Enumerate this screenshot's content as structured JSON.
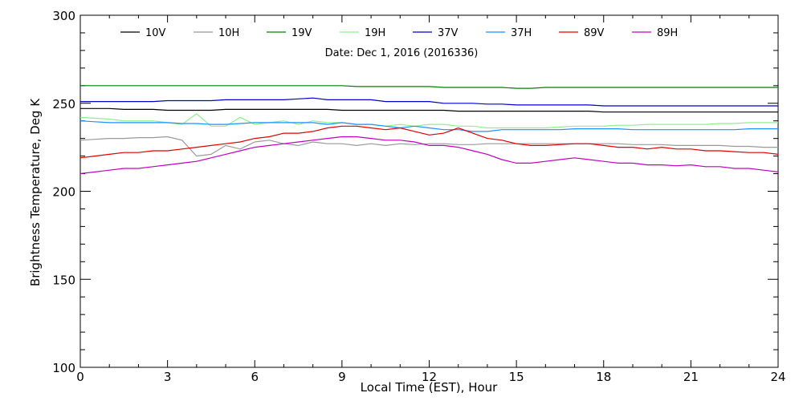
{
  "chart_data": {
    "type": "line",
    "title": "",
    "annotation": "Date: Dec  1, 2016 (2016336)",
    "xlabel": "Local Time (EST), Hour",
    "ylabel": "Brightness Temperature, Deg K",
    "xlim": [
      0,
      24
    ],
    "ylim": [
      100,
      300
    ],
    "x_ticks": [
      0,
      3,
      6,
      9,
      12,
      15,
      18,
      21,
      24
    ],
    "y_ticks": [
      100,
      150,
      200,
      250,
      300
    ],
    "grid": false,
    "legend_position": "top",
    "x": [
      0,
      0.5,
      1,
      1.5,
      2,
      2.5,
      3,
      3.5,
      4,
      4.5,
      5,
      5.5,
      6,
      6.5,
      7,
      7.5,
      8,
      8.5,
      9,
      9.5,
      10,
      10.5,
      11,
      11.5,
      12,
      12.5,
      13,
      13.5,
      14,
      14.5,
      15,
      15.5,
      16,
      16.5,
      17,
      17.5,
      18,
      18.5,
      19,
      19.5,
      20,
      20.5,
      21,
      21.5,
      22,
      22.5,
      23,
      23.5,
      24
    ],
    "series": [
      {
        "name": "10V",
        "color": "#000000",
        "values": [
          247,
          247,
          247,
          246.5,
          246.5,
          246.5,
          246,
          246,
          246,
          246,
          246.5,
          246.5,
          246.5,
          246.5,
          246.5,
          246.5,
          246.5,
          246.5,
          246,
          246,
          246,
          246,
          246,
          246,
          246,
          246,
          245.5,
          245.5,
          245.5,
          245.5,
          245.5,
          245.5,
          245.5,
          245.5,
          245.5,
          245.5,
          245,
          245,
          245,
          245,
          245,
          245,
          245,
          245,
          245,
          245,
          245,
          245,
          245
        ]
      },
      {
        "name": "10H",
        "color": "#999999",
        "values": [
          229,
          229.5,
          230,
          230,
          230.5,
          230.5,
          231,
          229,
          220,
          221,
          226,
          224,
          228,
          229,
          227,
          226,
          228,
          227,
          227,
          226,
          227,
          226,
          227,
          226.5,
          227,
          227,
          226.5,
          226.5,
          227,
          227,
          227,
          227,
          227,
          227,
          227,
          227,
          227,
          227,
          226.5,
          226.5,
          226.5,
          226,
          226,
          226,
          226,
          225.5,
          225.5,
          225,
          225
        ]
      },
      {
        "name": "19V",
        "color": "#008000",
        "values": [
          260,
          260,
          260,
          260,
          260,
          260,
          260,
          260,
          260,
          260,
          260,
          260,
          260,
          260,
          260,
          260,
          260,
          260,
          260,
          259.5,
          259.5,
          259.5,
          259.5,
          259.5,
          259.5,
          259,
          259,
          259,
          259,
          259,
          258.5,
          258.5,
          259,
          259,
          259,
          259,
          259,
          259,
          259,
          259,
          259,
          259,
          259,
          259,
          259,
          259,
          259,
          259,
          259
        ]
      },
      {
        "name": "19H",
        "color": "#90ee90",
        "values": [
          242,
          241.5,
          241,
          240,
          240,
          240,
          239,
          238,
          244,
          237,
          237,
          242,
          238,
          239,
          240,
          238,
          240,
          239,
          239,
          238,
          238,
          237,
          238,
          237,
          238,
          238,
          237,
          237,
          236,
          236,
          236,
          236,
          236,
          236.5,
          237,
          237,
          237,
          237.5,
          237.5,
          238,
          238,
          238,
          238,
          238,
          238.5,
          238.5,
          239,
          239,
          239
        ]
      },
      {
        "name": "37V",
        "color": "#0000c8",
        "values": [
          251,
          251,
          251,
          251,
          251,
          251,
          251.5,
          251.5,
          251.5,
          251.5,
          252,
          252,
          252,
          252,
          252,
          252.5,
          253,
          252,
          252,
          252,
          252,
          251,
          251,
          251,
          251,
          250,
          250,
          250,
          249.5,
          249.5,
          249,
          249,
          249,
          249,
          249,
          249,
          248.5,
          248.5,
          248.5,
          248.5,
          248.5,
          248.5,
          248.5,
          248.5,
          248.5,
          248.5,
          248.5,
          248.5,
          248.5
        ]
      },
      {
        "name": "37H",
        "color": "#1e90ff",
        "values": [
          240,
          239.5,
          239,
          239,
          239,
          239,
          239,
          238.5,
          238.5,
          238,
          238,
          238.5,
          239,
          239,
          239,
          239,
          239,
          238,
          239,
          238,
          238,
          237,
          236,
          237,
          236,
          235,
          235,
          234,
          234,
          235,
          235,
          235,
          235,
          235,
          235.5,
          235.5,
          235.5,
          235.5,
          235,
          235,
          235,
          235,
          235,
          235,
          235,
          235,
          235.5,
          235.5,
          235.5
        ]
      },
      {
        "name": "89V",
        "color": "#dd0000",
        "values": [
          219,
          220,
          221,
          222,
          222,
          223,
          223,
          224,
          225,
          226,
          227,
          228,
          230,
          231,
          233,
          233,
          234,
          236,
          237,
          237,
          236,
          235,
          236,
          234,
          232,
          233,
          236,
          233,
          230,
          229,
          227,
          226,
          226,
          226.5,
          227,
          227,
          226,
          225,
          225,
          224,
          225,
          224,
          224,
          223,
          223,
          222.5,
          222,
          222,
          221
        ]
      },
      {
        "name": "89H",
        "color": "#c000c0",
        "values": [
          210,
          211,
          212,
          213,
          213,
          214,
          215,
          216,
          217,
          219,
          221,
          223,
          225,
          226,
          227,
          228,
          229,
          230,
          231,
          231,
          230,
          229,
          229,
          228,
          226,
          226,
          225,
          223,
          221,
          218,
          216,
          216,
          217,
          218,
          219,
          218,
          217,
          216,
          216,
          215,
          215,
          214.5,
          215,
          214,
          214,
          213,
          213,
          212,
          211
        ]
      }
    ]
  }
}
